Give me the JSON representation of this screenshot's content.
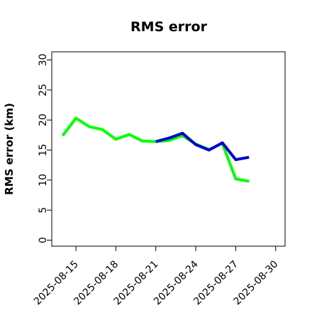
{
  "chart_data": {
    "type": "line",
    "title": "RMS error",
    "xlabel": "",
    "ylabel": "RMS error (km)",
    "ylim": [
      0,
      30
    ],
    "yticks": [
      0,
      5,
      10,
      15,
      20,
      25,
      30
    ],
    "xlim": [
      "2025-08-13",
      "2025-08-31"
    ],
    "xticks": [
      "2025-08-15",
      "2025-08-18",
      "2025-08-21",
      "2025-08-24",
      "2025-08-27",
      "2025-08-30"
    ],
    "highlighted_xtick": "2025-08-21",
    "highlight_color": "#228b22",
    "grid": false,
    "legend": "none",
    "series": [
      {
        "color": "#00ff00",
        "x": [
          "2025-08-14",
          "2025-08-15",
          "2025-08-16",
          "2025-08-17",
          "2025-08-18",
          "2025-08-19",
          "2025-08-20",
          "2025-08-21",
          "2025-08-22",
          "2025-08-23",
          "2025-08-24",
          "2025-08-25",
          "2025-08-26",
          "2025-08-27",
          "2025-08-28"
        ],
        "values": [
          17.4,
          20.3,
          18.9,
          18.4,
          16.8,
          17.6,
          16.5,
          16.4,
          16.6,
          17.4,
          16.0,
          15.1,
          16.1,
          10.2,
          9.8
        ]
      },
      {
        "color": "#0000cd",
        "x": [
          "2025-08-21",
          "2025-08-22",
          "2025-08-23",
          "2025-08-24",
          "2025-08-25",
          "2025-08-26",
          "2025-08-27",
          "2025-08-28"
        ],
        "values": [
          16.4,
          17.0,
          17.8,
          15.9,
          15.0,
          16.2,
          13.4,
          13.8
        ]
      }
    ]
  }
}
